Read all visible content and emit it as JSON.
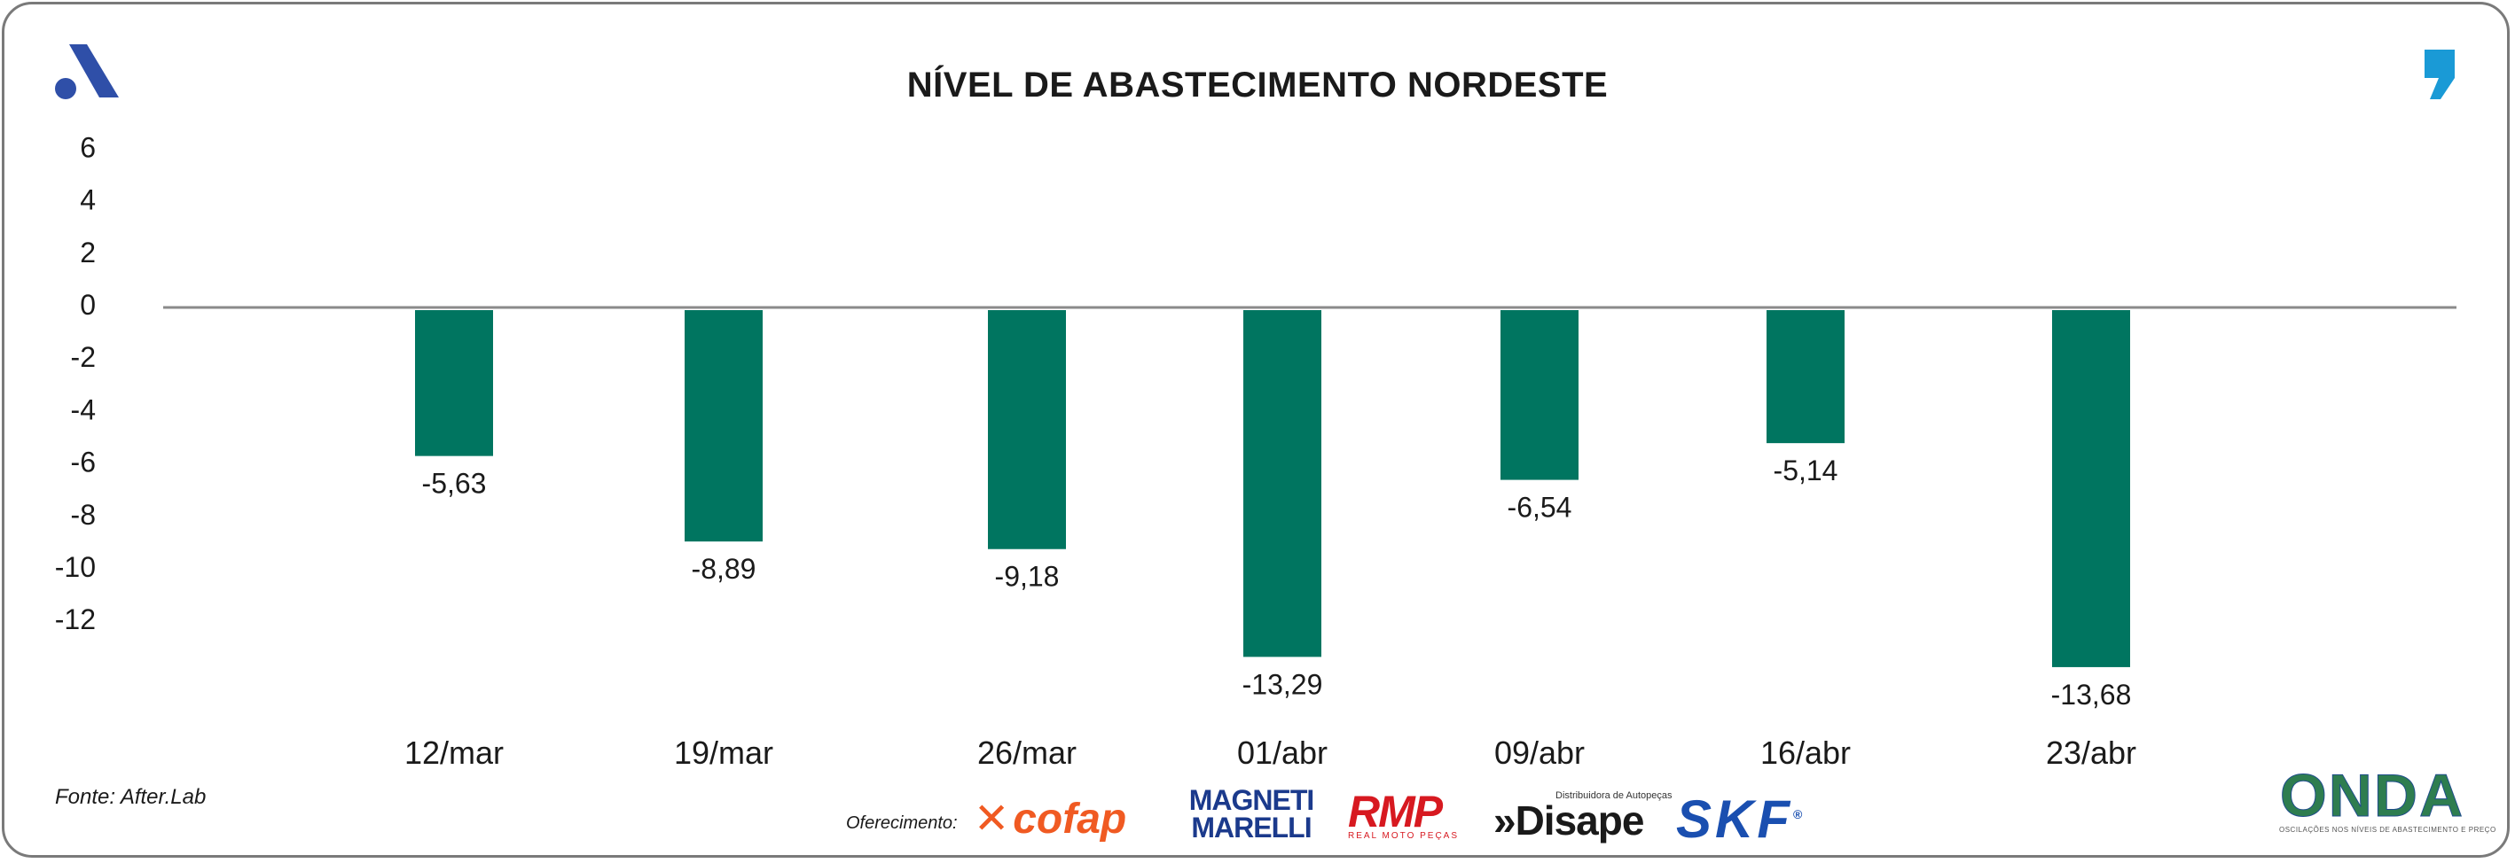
{
  "header": {
    "title": "NÍVEL DE ABASTECIMENTO NORDESTE",
    "logo_icon": "after-lab-a-logo-icon",
    "quote_icon": "quote-mark-icon"
  },
  "colors": {
    "bar": "#007560",
    "zero_line": "#8a8a8a",
    "frame": "#7a7a7a",
    "logo_blue": "#2f4fa8",
    "quote_blue": "#1a9ad6"
  },
  "chart_data": {
    "type": "bar",
    "title": "NÍVEL DE ABASTECIMENTO NORDESTE",
    "xlabel": "",
    "ylabel": "",
    "categories": [
      "12/mar",
      "19/mar",
      "26/mar",
      "01/abr",
      "09/abr",
      "16/abr",
      "23/abr"
    ],
    "values": [
      -5.63,
      -8.89,
      -9.18,
      -13.29,
      -6.54,
      -5.14,
      -13.68
    ],
    "value_labels": [
      "-5,63",
      "-8,89",
      "-9,18",
      "-13,29",
      "-6,54",
      "-5,14",
      "-13,68"
    ],
    "yticks": [
      6,
      4,
      2,
      0,
      -2,
      -4,
      -6,
      -8,
      -10,
      -12
    ],
    "ytick_labels": [
      "6",
      "4",
      "2",
      "0",
      "-2",
      "-4",
      "-6",
      "-8",
      "-10",
      "-12"
    ],
    "ylim": [
      -14,
      6
    ],
    "grid": false,
    "legend": "none"
  },
  "footer": {
    "source": "Fonte: After.Lab",
    "sponsor_label": "Oferecimento:",
    "brands": {
      "cofap": "cofap",
      "magneti_line1": "MAGNETI",
      "magneti_line2": "MARELLI",
      "rmp": "RMP",
      "rmp_tagline": "REAL MOTO PEÇAS",
      "disape_tagline": "Distribuidora de Autopeças",
      "disape": "»Disape",
      "skf": "SKF",
      "onda": "ONDA",
      "onda_tagline": "OSCILAÇÕES NOS NÍVEIS DE ABASTECIMENTO E PREÇO"
    }
  }
}
